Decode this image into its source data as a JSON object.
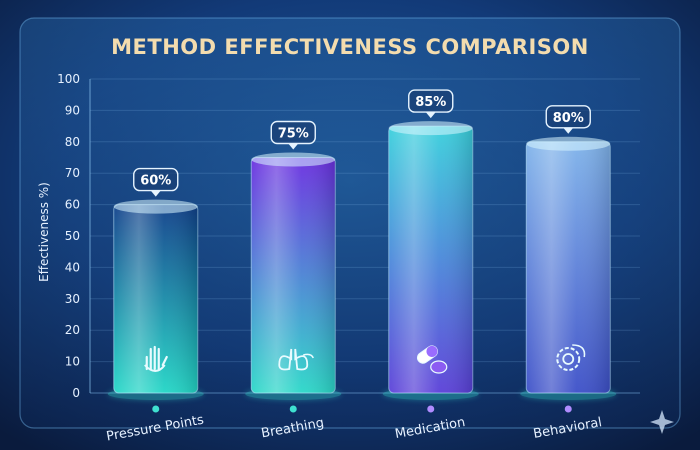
{
  "chart_data": {
    "type": "bar",
    "title": "METHOD EFFECTIVENESS COMPARISON",
    "ylabel": "Effectiveness %)",
    "xlabel": "",
    "ylim": [
      0,
      100
    ],
    "yticks": [
      0,
      10,
      20,
      30,
      40,
      50,
      60,
      70,
      80,
      90,
      100
    ],
    "grid": true,
    "categories": [
      "Pressure Points",
      "Breathing",
      "Medication",
      "Behavioral"
    ],
    "values": [
      60,
      75,
      85,
      80
    ],
    "value_labels": [
      "60%",
      "75%",
      "85%",
      "80%"
    ],
    "bar_icons": [
      "hand-icon",
      "lungs-icon",
      "pill-capsule-icon",
      "brain-gear-icon"
    ],
    "bar_colors": [
      {
        "top": "#0f3f8a",
        "bottom": "#22d6c6"
      },
      {
        "top": "#6a2ee0",
        "bottom": "#2ad8c8"
      },
      {
        "top": "#39d0dc",
        "bottom": "#5a3fd8"
      },
      {
        "top": "#7fb3ea",
        "bottom": "#3c4fc8"
      }
    ]
  }
}
